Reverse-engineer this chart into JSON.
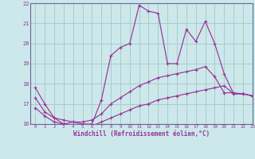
{
  "bg_color": "#cce8ea",
  "grid_color": "#aacccc",
  "line_color": "#993399",
  "spine_color": "#666699",
  "xlim": [
    -0.5,
    23
  ],
  "ylim": [
    16,
    22
  ],
  "yticks": [
    16,
    17,
    18,
    19,
    20,
    21,
    22
  ],
  "xticks": [
    0,
    1,
    2,
    3,
    4,
    5,
    6,
    7,
    8,
    9,
    10,
    11,
    12,
    13,
    14,
    15,
    16,
    17,
    18,
    19,
    20,
    21,
    22,
    23
  ],
  "xlabel": "Windchill (Refroidissement éolien,°C)",
  "series1_x": [
    0,
    1,
    2,
    3,
    4,
    5,
    6,
    7,
    8,
    9,
    10,
    11,
    12,
    13,
    14,
    15,
    16,
    17,
    18,
    19,
    20,
    21,
    22,
    23
  ],
  "series1_y": [
    17.8,
    17.0,
    16.3,
    16.0,
    16.1,
    16.0,
    16.0,
    17.2,
    19.4,
    19.8,
    20.0,
    21.9,
    21.6,
    21.5,
    19.0,
    19.0,
    20.7,
    20.1,
    21.1,
    20.0,
    18.5,
    17.5,
    17.5,
    17.4
  ],
  "series2_x": [
    0,
    1,
    2,
    3,
    4,
    5,
    6,
    7,
    8,
    9,
    10,
    11,
    12,
    13,
    14,
    15,
    16,
    17,
    18,
    19,
    20,
    21,
    22,
    23
  ],
  "series2_y": [
    17.3,
    16.6,
    16.3,
    16.2,
    16.1,
    16.1,
    16.2,
    16.5,
    17.0,
    17.3,
    17.6,
    17.9,
    18.1,
    18.3,
    18.4,
    18.5,
    18.6,
    18.7,
    18.85,
    18.35,
    17.55,
    17.55,
    17.5,
    17.4
  ],
  "series3_x": [
    0,
    1,
    2,
    3,
    4,
    5,
    6,
    7,
    8,
    9,
    10,
    11,
    12,
    13,
    14,
    15,
    16,
    17,
    18,
    19,
    20,
    21,
    22,
    23
  ],
  "series3_y": [
    16.8,
    16.4,
    16.1,
    16.0,
    15.9,
    15.9,
    15.9,
    16.1,
    16.3,
    16.5,
    16.7,
    16.9,
    17.0,
    17.2,
    17.3,
    17.4,
    17.5,
    17.6,
    17.7,
    17.8,
    17.9,
    17.5,
    17.5,
    17.4
  ]
}
